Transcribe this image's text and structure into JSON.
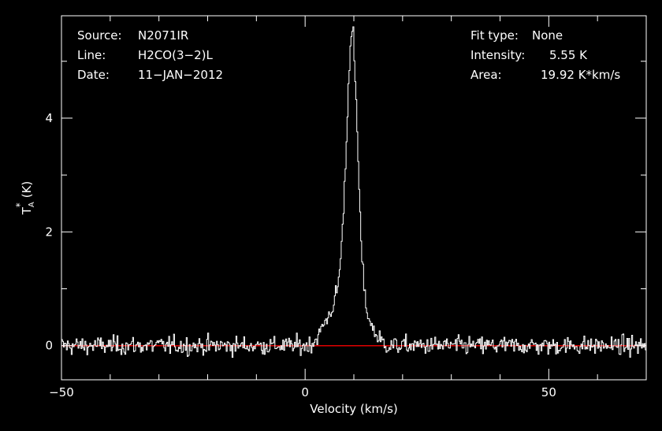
{
  "chart_data": {
    "type": "line",
    "title": "",
    "xlabel": "Velocity (km/s)",
    "ylabel_main": "T",
    "ylabel_sub": "A",
    "ylabel_sup": "*",
    "ylabel_unit": "(K)",
    "xlim": [
      -50,
      70
    ],
    "ylim": [
      -0.6,
      5.8
    ],
    "xticks": [
      -50,
      0,
      50
    ],
    "xticklabels": [
      "−50",
      "0",
      "50"
    ],
    "yticks": [
      0,
      2,
      4
    ],
    "yticklabels": [
      "0",
      "2",
      "4"
    ],
    "grid": false,
    "legend": "none",
    "colors": {
      "background": "#000000",
      "frame": "#ffffff",
      "spectrum": "#ffffff",
      "baseline": "#e00000",
      "text": "#ffffff"
    },
    "baseline": 0,
    "noise_rms": 0.08,
    "series": [
      {
        "values_desc": "spectrum",
        "profile": [
          [
            -50,
            0.0
          ],
          [
            0,
            0.0
          ],
          [
            1,
            0.02
          ],
          [
            2,
            0.08
          ],
          [
            3,
            0.22
          ],
          [
            4,
            0.4
          ],
          [
            5,
            0.55
          ],
          [
            6,
            0.75
          ],
          [
            7,
            1.2
          ],
          [
            7.8,
            2.2
          ],
          [
            8.5,
            3.6
          ],
          [
            9,
            4.8
          ],
          [
            9.4,
            5.55
          ],
          [
            9.9,
            5.45
          ],
          [
            10.5,
            4.2
          ],
          [
            11,
            3.0
          ],
          [
            11.6,
            1.6
          ],
          [
            12.2,
            0.9
          ],
          [
            13,
            0.5
          ],
          [
            14,
            0.28
          ],
          [
            15,
            0.14
          ],
          [
            16,
            0.05
          ],
          [
            17,
            0.0
          ],
          [
            70,
            0.0
          ]
        ]
      }
    ]
  },
  "info_left": [
    {
      "key": "Source:",
      "value": "N2071IR"
    },
    {
      "key": "Line:",
      "value": "H2CO(3−2)L"
    },
    {
      "key": "Date:",
      "value": "11−JAN−2012"
    }
  ],
  "info_right": [
    {
      "key": "Fit type:",
      "value": "None"
    },
    {
      "key": "Intensity:",
      "value": "5.55 K"
    },
    {
      "key": "Area:",
      "value": "19.92 K*km/s"
    }
  ]
}
